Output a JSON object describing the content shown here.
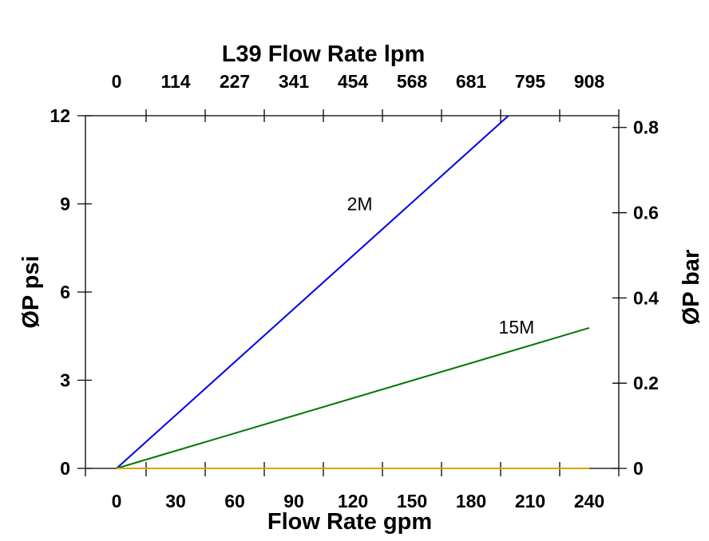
{
  "chart_data": {
    "type": "line",
    "title": "L39 Flow Rate lpm",
    "xlabel": "Flow Rate gpm",
    "ylabel": "ØP psi",
    "ylabel_right": "ØP bar",
    "xlim": [
      -16,
      255
    ],
    "ylim": [
      0,
      12
    ],
    "x_ticks": [
      0,
      30,
      60,
      90,
      120,
      150,
      180,
      210,
      240
    ],
    "x_tick_marks": [
      15,
      45,
      75,
      105,
      135,
      165,
      195,
      225
    ],
    "y_ticks": [
      0,
      3,
      6,
      9,
      12
    ],
    "y_right_ticks": [
      "0",
      "0.2",
      "0.4",
      "0.6",
      "0.8"
    ],
    "y_right_values_psi": [
      0,
      2.9,
      5.8,
      8.7,
      11.6
    ],
    "top_ticks": [
      "0",
      "114",
      "227",
      "341",
      "454",
      "568",
      "681",
      "795",
      "908"
    ],
    "grid": false,
    "series": [
      {
        "name": "2M",
        "color": "#0000ee",
        "x": [
          0,
          199
        ],
        "y": [
          0,
          12
        ],
        "label_at": [
          117,
          9.0
        ]
      },
      {
        "name": "15M",
        "color": "#007700",
        "x": [
          0,
          240
        ],
        "y": [
          0,
          4.78
        ],
        "label_at": [
          194,
          4.8
        ]
      },
      {
        "color": "#e0a000",
        "x": [
          0,
          240
        ],
        "y": [
          0,
          0
        ]
      }
    ]
  }
}
